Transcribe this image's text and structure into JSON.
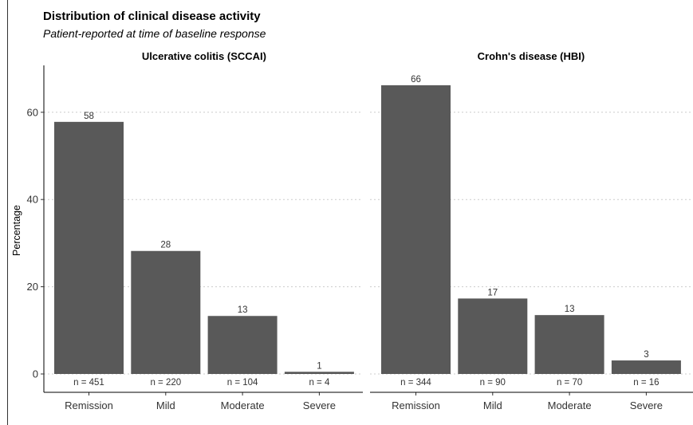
{
  "title": "Distribution of clinical disease activity",
  "subtitle": "Patient-reported at time of baseline response",
  "chart_data": {
    "type": "bar",
    "ylabel": "Percentage",
    "xlabel": "",
    "ylim": [
      0,
      70
    ],
    "yticks": [
      0,
      20,
      40,
      60
    ],
    "grid": "horizontal-dotted",
    "bar_color": "#595959",
    "grid_color": "#cccccc",
    "categories": [
      "Remission",
      "Mild",
      "Moderate",
      "Severe"
    ],
    "panels": [
      {
        "title": "Ulcerative colitis (SCCAI)",
        "values": [
          58,
          28,
          13,
          1
        ],
        "exact_values": [
          57.8,
          28.2,
          13.3,
          0.5
        ],
        "n_labels": [
          "n = 451",
          "n = 220",
          "n = 104",
          "n = 4"
        ]
      },
      {
        "title": "Crohn's disease (HBI)",
        "values": [
          66,
          17,
          13,
          3
        ],
        "exact_values": [
          66.2,
          17.3,
          13.5,
          3.1
        ],
        "n_labels": [
          "n = 344",
          "n = 90",
          "n = 70",
          "n = 16"
        ]
      }
    ]
  }
}
